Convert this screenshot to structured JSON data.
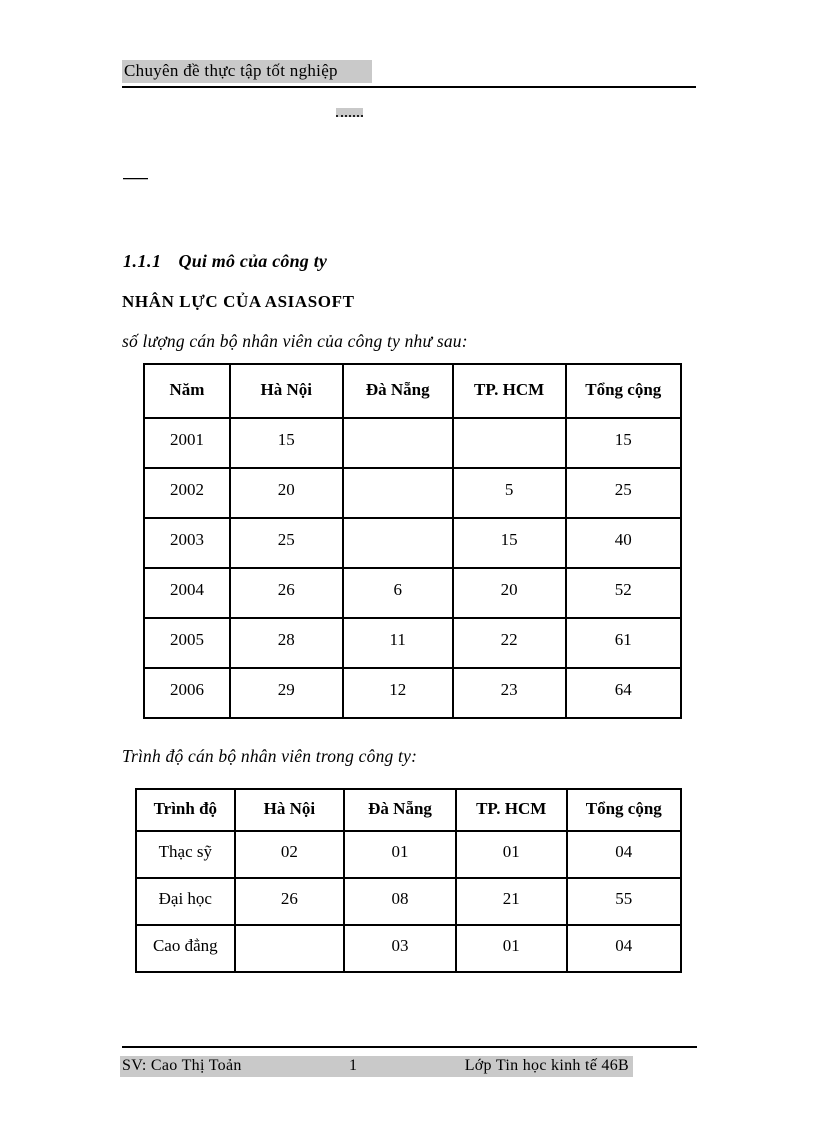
{
  "header": {
    "title": "Chuyên đề thực tập tốt nghiệp"
  },
  "section": {
    "number": "1.1.1",
    "title": "Qui mô của công ty"
  },
  "subtitle": "NHÂN LỰC CỦA ASIASOFT",
  "captions": {
    "table1": "số lượng cán bộ nhân viên của công ty như sau:",
    "table2": "Trình độ cán bộ nhân viên trong công ty:"
  },
  "table1": {
    "headers": [
      "Năm",
      "Hà Nội",
      "Đà Nẵng",
      "TP. HCM",
      "Tổng cộng"
    ],
    "rows": [
      [
        "2001",
        "15",
        "",
        "",
        "15"
      ],
      [
        "2002",
        "20",
        "",
        "5",
        "25"
      ],
      [
        "2003",
        "25",
        "",
        "15",
        "40"
      ],
      [
        "2004",
        "26",
        "6",
        "20",
        "52"
      ],
      [
        "2005",
        "28",
        "11",
        "22",
        "61"
      ],
      [
        "2006",
        "29",
        "12",
        "23",
        "64"
      ]
    ]
  },
  "table2": {
    "headers": [
      "Trình độ",
      "Hà Nội",
      "Đà Nẵng",
      "TP. HCM",
      "Tổng cộng"
    ],
    "rows": [
      [
        "Thạc sỹ",
        "02",
        "01",
        "01",
        "04"
      ],
      [
        "Đại học",
        "26",
        "08",
        "21",
        "55"
      ],
      [
        "Cao đẳng",
        "",
        "03",
        "01",
        "04"
      ]
    ]
  },
  "footer": {
    "left": "SV: Cao Thị Toản",
    "page_number": "1",
    "right": "Lớp Tin học kinh tế 46B"
  },
  "colors": {
    "highlight": "#c9c9c9",
    "text": "#000000"
  }
}
